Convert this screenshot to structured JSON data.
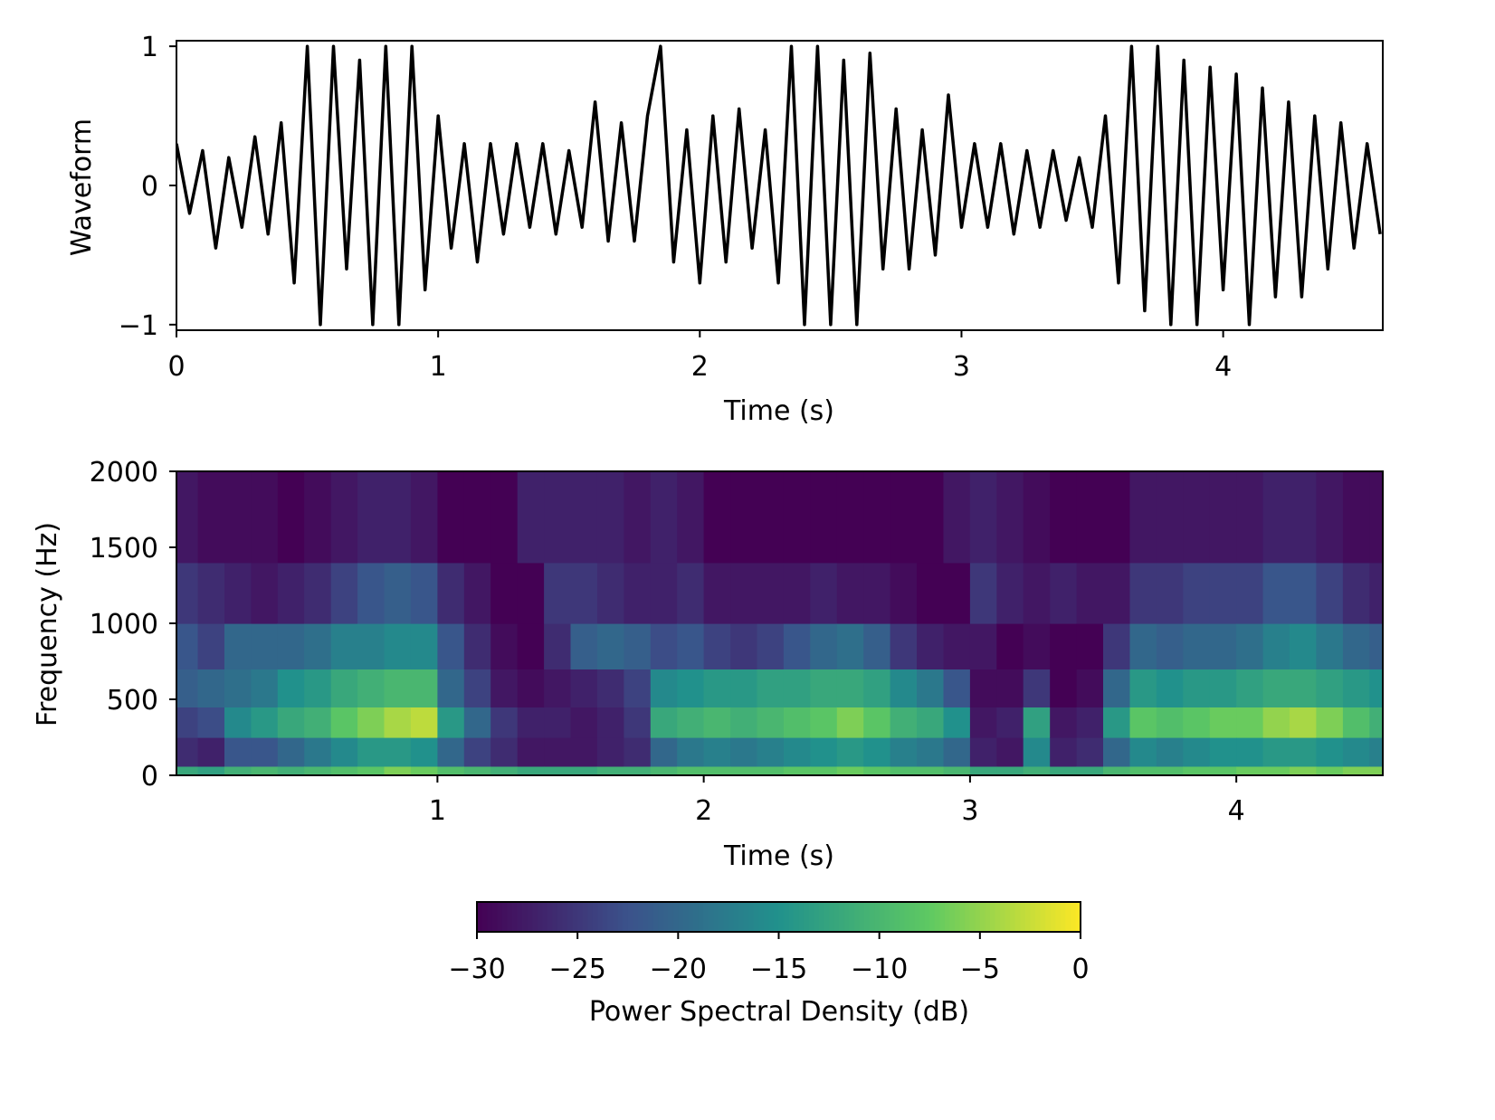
{
  "chart_data": [
    {
      "type": "line",
      "xlabel": "Time (s)",
      "ylabel": "Waveform",
      "xlim": [
        0,
        4.61
      ],
      "ylim": [
        -1.04,
        1.04
      ],
      "xticks": [
        0,
        1,
        2,
        3,
        4
      ],
      "xtick_labels": [
        "0",
        "1",
        "2",
        "3",
        "4"
      ],
      "yticks": [
        -1,
        0,
        1
      ],
      "ytick_labels": [
        "−1",
        "0",
        "1"
      ],
      "grid": false,
      "line_color": "#000000",
      "x_step": 0.05,
      "values": [
        0.3,
        -0.2,
        0.25,
        -0.45,
        0.2,
        -0.3,
        0.35,
        -0.35,
        0.45,
        -0.7,
        1.0,
        -1.0,
        1.0,
        -0.6,
        0.9,
        -1.0,
        1.0,
        -1.0,
        1.0,
        -0.75,
        0.5,
        -0.45,
        0.3,
        -0.55,
        0.3,
        -0.35,
        0.3,
        -0.3,
        0.3,
        -0.35,
        0.25,
        -0.3,
        0.6,
        -0.4,
        0.45,
        -0.4,
        0.5,
        1.0,
        -0.55,
        0.4,
        -0.7,
        0.5,
        -0.55,
        0.55,
        -0.45,
        0.4,
        -0.7,
        1.0,
        -1.0,
        1.0,
        -1.0,
        0.9,
        -1.0,
        0.95,
        -0.6,
        0.55,
        -0.6,
        0.4,
        -0.5,
        0.65,
        -0.3,
        0.3,
        -0.3,
        0.3,
        -0.35,
        0.25,
        -0.3,
        0.25,
        -0.25,
        0.2,
        -0.3,
        0.5,
        -0.7,
        1.0,
        -0.9,
        1.0,
        -1.0,
        0.9,
        -1.0,
        0.85,
        -0.75,
        0.8,
        -1.0,
        0.7,
        -0.8,
        0.6,
        -0.8,
        0.5,
        -0.6,
        0.45,
        -0.45,
        0.3,
        -0.35
      ]
    },
    {
      "type": "heatmap",
      "xlabel": "Time (s)",
      "ylabel": "Frequency (Hz)",
      "xlim": [
        0.02,
        4.55
      ],
      "ylim": [
        0,
        2000
      ],
      "xticks": [
        1,
        2,
        3,
        4
      ],
      "xtick_labels": [
        "1",
        "2",
        "3",
        "4"
      ],
      "yticks": [
        0,
        500,
        1000,
        1500,
        2000
      ],
      "ytick_labels": [
        "0",
        "500",
        "1000",
        "1500",
        "2000"
      ],
      "colormap": "viridis",
      "colormap_stops": [
        "#440154",
        "#3b528b",
        "#21918c",
        "#5ec962",
        "#fde725"
      ],
      "time_bin": 0.1,
      "time_start": 0.0,
      "freq_band_edges": [
        0,
        60,
        250,
        450,
        700,
        1000,
        1400,
        2000
      ],
      "values_db": [
        [
          -12,
          -26,
          -24,
          -21,
          -22,
          -25,
          -28
        ],
        [
          -13,
          -27,
          -23,
          -20,
          -24,
          -26,
          -29
        ],
        [
          -11,
          -22,
          -16,
          -19,
          -20,
          -27,
          -29
        ],
        [
          -10,
          -22,
          -14,
          -18,
          -20,
          -28,
          -29
        ],
        [
          -11,
          -20,
          -12,
          -15,
          -20,
          -27,
          -30
        ],
        [
          -10,
          -18,
          -11,
          -14,
          -19,
          -26,
          -29
        ],
        [
          -9,
          -16,
          -8,
          -12,
          -17,
          -24,
          -28
        ],
        [
          -8,
          -14,
          -6,
          -11,
          -17,
          -22,
          -27
        ],
        [
          -6,
          -14,
          -4,
          -10,
          -16,
          -21,
          -27
        ],
        [
          -7,
          -15,
          -3,
          -10,
          -16,
          -22,
          -28
        ],
        [
          -9,
          -20,
          -14,
          -20,
          -22,
          -26,
          -30
        ],
        [
          -10,
          -24,
          -20,
          -24,
          -26,
          -28,
          -30
        ],
        [
          -11,
          -26,
          -25,
          -28,
          -29,
          -30,
          -30
        ],
        [
          -12,
          -28,
          -27,
          -29,
          -30,
          -30,
          -27
        ],
        [
          -12,
          -28,
          -27,
          -28,
          -26,
          -25,
          -27
        ],
        [
          -12,
          -28,
          -28,
          -27,
          -21,
          -25,
          -27
        ],
        [
          -11,
          -27,
          -27,
          -26,
          -20,
          -26,
          -27
        ],
        [
          -11,
          -26,
          -25,
          -24,
          -21,
          -27,
          -28
        ],
        [
          -10,
          -20,
          -12,
          -16,
          -23,
          -27,
          -27
        ],
        [
          -9,
          -18,
          -11,
          -15,
          -22,
          -26,
          -28
        ],
        [
          -9,
          -17,
          -10,
          -14,
          -24,
          -28,
          -30
        ],
        [
          -9,
          -18,
          -11,
          -14,
          -25,
          -28,
          -30
        ],
        [
          -9,
          -17,
          -10,
          -13,
          -24,
          -28,
          -30
        ],
        [
          -8,
          -16,
          -9,
          -13,
          -22,
          -28,
          -30
        ],
        [
          -8,
          -15,
          -8,
          -12,
          -20,
          -27,
          -30
        ],
        [
          -7,
          -14,
          -6,
          -12,
          -19,
          -28,
          -30
        ],
        [
          -8,
          -15,
          -8,
          -13,
          -21,
          -28,
          -30
        ],
        [
          -9,
          -17,
          -11,
          -16,
          -25,
          -29,
          -30
        ],
        [
          -9,
          -18,
          -12,
          -18,
          -27,
          -30,
          -30
        ],
        [
          -10,
          -20,
          -15,
          -22,
          -28,
          -30,
          -28
        ],
        [
          -12,
          -27,
          -28,
          -29,
          -28,
          -25,
          -27
        ],
        [
          -12,
          -28,
          -27,
          -29,
          -30,
          -27,
          -28
        ],
        [
          -11,
          -16,
          -13,
          -25,
          -29,
          -28,
          -29
        ],
        [
          -12,
          -27,
          -28,
          -30,
          -30,
          -27,
          -30
        ],
        [
          -12,
          -26,
          -27,
          -29,
          -30,
          -28,
          -30
        ],
        [
          -10,
          -20,
          -14,
          -20,
          -25,
          -28,
          -30
        ],
        [
          -9,
          -16,
          -8,
          -14,
          -20,
          -25,
          -28
        ],
        [
          -9,
          -17,
          -9,
          -15,
          -21,
          -25,
          -28
        ],
        [
          -8,
          -16,
          -8,
          -14,
          -20,
          -24,
          -28
        ],
        [
          -8,
          -15,
          -7,
          -14,
          -20,
          -24,
          -28
        ],
        [
          -7,
          -15,
          -7,
          -13,
          -19,
          -24,
          -28
        ],
        [
          -7,
          -14,
          -5,
          -12,
          -17,
          -22,
          -27
        ],
        [
          -6,
          -14,
          -4,
          -12,
          -16,
          -22,
          -27
        ],
        [
          -7,
          -15,
          -6,
          -13,
          -18,
          -24,
          -28
        ],
        [
          -6,
          -16,
          -9,
          -14,
          -20,
          -26,
          -29
        ],
        [
          -6,
          -17,
          -11,
          -15,
          -21,
          -27,
          -29
        ]
      ],
      "colorbar": {
        "label": "Power Spectral Density (dB)",
        "orientation": "horizontal",
        "range": [
          -30,
          0
        ],
        "ticks": [
          -30,
          -25,
          -20,
          -15,
          -10,
          -5,
          0
        ],
        "tick_labels": [
          "−30",
          "−25",
          "−20",
          "−15",
          "−10",
          "−5",
          "0"
        ]
      }
    }
  ]
}
